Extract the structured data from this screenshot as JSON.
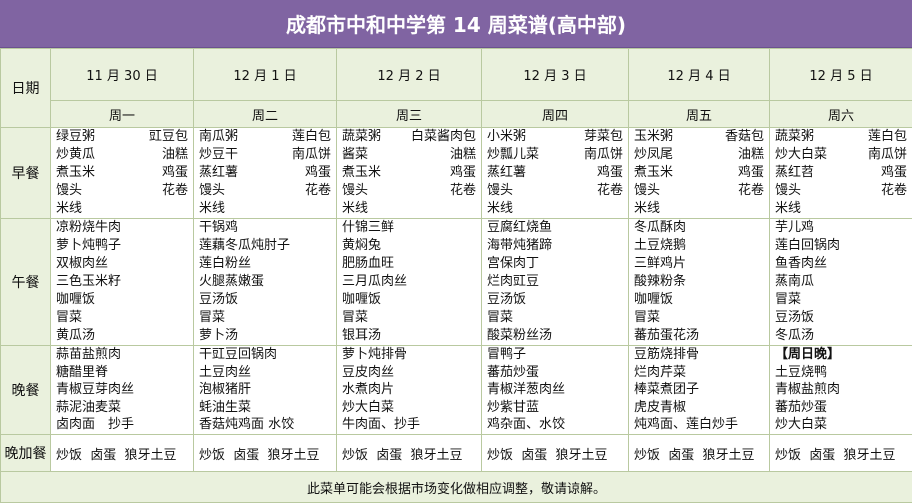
{
  "title": "成都市中和中学第 14 周菜谱(高中部)",
  "labels": {
    "date": "日期",
    "breakfast": "早餐",
    "lunch": "午餐",
    "dinner": "晚餐",
    "snack": "晚加餐"
  },
  "days": [
    {
      "date": "11 月 30 日",
      "weekday": "周一",
      "breakfast": [
        [
          "绿豆粥",
          "豇豆包"
        ],
        [
          "炒黄瓜",
          "油糕"
        ],
        [
          "煮玉米",
          "鸡蛋"
        ],
        [
          "馒头",
          "花卷"
        ],
        [
          "米线"
        ]
      ],
      "lunch": [
        "凉粉烧牛肉",
        "萝卜炖鸭子",
        "双椒肉丝",
        "三色玉米籽",
        "咖喱饭",
        "冒菜",
        "黄瓜汤"
      ],
      "dinner": [
        "蒜苗盐煎肉",
        "糖醋里脊",
        "青椒豆芽肉丝",
        "蒜泥油麦菜",
        "卤肉面　抄手"
      ],
      "snack": "炒饭  卤蛋  狼牙土豆"
    },
    {
      "date": "12 月 1 日",
      "weekday": "周二",
      "breakfast": [
        [
          "南瓜粥",
          "莲白包"
        ],
        [
          "炒豆干",
          "南瓜饼"
        ],
        [
          "蒸红薯",
          "鸡蛋"
        ],
        [
          "馒头",
          "花卷"
        ],
        [
          "米线"
        ]
      ],
      "lunch": [
        "干锅鸡",
        "莲藕冬瓜炖肘子",
        "莲白粉丝",
        "火腿蒸嫩蛋",
        "豆汤饭",
        "冒菜",
        "萝卜汤"
      ],
      "dinner": [
        "干豇豆回锅肉",
        "土豆肉丝",
        "泡椒猪肝",
        "蚝油生菜",
        "香菇炖鸡面  水饺"
      ],
      "snack": "炒饭  卤蛋  狼牙土豆"
    },
    {
      "date": "12 月 2 日",
      "weekday": "周三",
      "breakfast": [
        [
          "蔬菜粥",
          "白菜酱肉包"
        ],
        [
          "酱菜",
          "油糕"
        ],
        [
          "煮玉米",
          "鸡蛋"
        ],
        [
          "馒头",
          "花卷"
        ],
        [
          "米线"
        ]
      ],
      "lunch": [
        "什锦三鲜",
        "黄焖兔",
        "肥肠血旺",
        "三月瓜肉丝",
        "咖喱饭",
        "冒菜",
        "银耳汤"
      ],
      "dinner": [
        "萝卜炖排骨",
        "豆皮肉丝",
        "水煮肉片",
        "炒大白菜",
        "牛肉面、抄手"
      ],
      "snack": "炒饭  卤蛋  狼牙土豆"
    },
    {
      "date": "12 月 3 日",
      "weekday": "周四",
      "breakfast": [
        [
          "小米粥",
          "芽菜包"
        ],
        [
          "炒瓢儿菜",
          "南瓜饼"
        ],
        [
          "蒸红薯",
          "鸡蛋"
        ],
        [
          "馒头",
          "花卷"
        ],
        [
          "米线"
        ]
      ],
      "lunch": [
        "豆腐红烧鱼",
        "海带炖猪蹄",
        "宫保肉丁",
        "烂肉豇豆",
        "豆汤饭",
        "冒菜",
        "酸菜粉丝汤"
      ],
      "dinner": [
        "冒鸭子",
        "蕃茄炒蛋",
        "青椒洋葱肉丝",
        "炒紫甘蓝",
        "鸡杂面、水饺"
      ],
      "snack": "炒饭  卤蛋  狼牙土豆"
    },
    {
      "date": "12 月 4 日",
      "weekday": "周五",
      "breakfast": [
        [
          "玉米粥",
          "香菇包"
        ],
        [
          "炒凤尾",
          "油糕"
        ],
        [
          "煮玉米",
          "鸡蛋"
        ],
        [
          "馒头",
          "花卷"
        ],
        [
          "米线"
        ]
      ],
      "lunch": [
        "冬瓜酥肉",
        "土豆烧鹅",
        "三鲜鸡片",
        "酸辣粉条",
        "咖喱饭",
        "冒菜",
        "蕃茄蛋花汤"
      ],
      "dinner": [
        "豆筋烧排骨",
        "烂肉芹菜",
        "棒菜煮团子",
        "虎皮青椒",
        "炖鸡面、莲白炒手"
      ],
      "snack": "炒饭  卤蛋  狼牙土豆"
    },
    {
      "date": "12 月 5 日",
      "weekday": "周六",
      "breakfast": [
        [
          "蔬菜粥",
          "莲白包"
        ],
        [
          "炒大白菜",
          "南瓜饼"
        ],
        [
          "蒸红苕",
          "鸡蛋"
        ],
        [
          "馒头",
          "花卷"
        ],
        [
          "米线"
        ]
      ],
      "lunch": [
        "芋儿鸡",
        "莲白回锅肉",
        "鱼香肉丝",
        "蒸南瓜",
        "冒菜",
        "豆汤饭",
        "冬瓜汤"
      ],
      "dinner": [
        "【周日晚】",
        "土豆烧鸭",
        "青椒盐煎肉",
        "蕃茄炒蛋",
        "炒大白菜"
      ],
      "snack": "炒饭  卤蛋  狼牙土豆"
    }
  ],
  "footer": "此菜单可能会根据市场变化做相应调整，敬请谅解。"
}
